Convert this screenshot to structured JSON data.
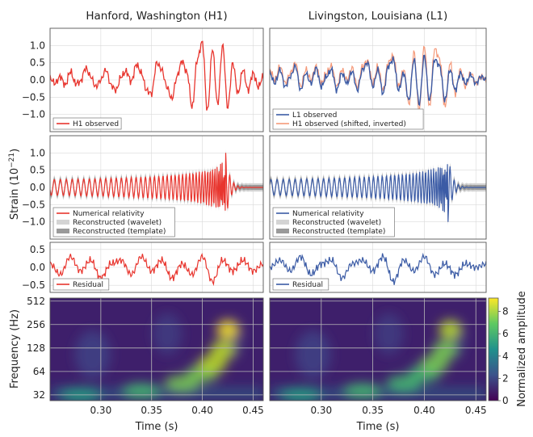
{
  "chart_data": {
    "type": "line",
    "columns": [
      {
        "title": "Hanford, Washington (H1)",
        "color": "#e8352e"
      },
      {
        "title": "Livingston, Louisiana (L1)",
        "color": "#3b5ba5"
      }
    ],
    "shared": {
      "xlabel": "Time (s)",
      "xlim": [
        0.25,
        0.46
      ],
      "xticks": [
        "0.30",
        "0.35",
        "0.40",
        "0.45"
      ],
      "xtick_values": [
        0.3,
        0.35,
        0.4,
        0.45
      ],
      "ylabel_strain": "Strain (10",
      "ylabel_strain_exp": "−21",
      "ylabel_strain_close": ")",
      "ylabel_freq": "Frequency (Hz)"
    },
    "rows": [
      {
        "id": "observed",
        "ylim": [
          -1.5,
          1.5
        ],
        "yticks": [
          "1.0",
          "0.5",
          "0.0",
          "−0.5",
          "−1.0"
        ],
        "ytick_values": [
          1.0,
          0.5,
          0.0,
          -0.5,
          -1.0
        ],
        "legend": {
          "h1": [
            {
              "label": "H1 observed",
              "color": "#e8352e",
              "style": "line"
            }
          ],
          "l1": [
            {
              "label": "L1 observed",
              "color": "#3b5ba5",
              "style": "line"
            },
            {
              "label": "H1 observed (shifted, inverted)",
              "color": "#f59a7a",
              "style": "line"
            }
          ]
        }
      },
      {
        "id": "reconstructed",
        "ylim": [
          -1.5,
          1.5
        ],
        "yticks": [
          "1.0",
          "0.5",
          "0.0",
          "−0.5",
          "−1.0"
        ],
        "ytick_values": [
          1.0,
          0.5,
          0.0,
          -0.5,
          -1.0
        ],
        "legend": {
          "h1": [
            {
              "label": "Numerical relativity",
              "color": "#e8352e",
              "style": "line"
            },
            {
              "label": "Reconstructed (wavelet)",
              "color": "#d4d4d4",
              "style": "band"
            },
            {
              "label": "Reconstructed (template)",
              "color": "#9a9a9a",
              "style": "band"
            }
          ],
          "l1": [
            {
              "label": "Numerical relativity",
              "color": "#3b5ba5",
              "style": "line"
            },
            {
              "label": "Reconstructed (wavelet)",
              "color": "#d4d4d4",
              "style": "band"
            },
            {
              "label": "Reconstructed (template)",
              "color": "#9a9a9a",
              "style": "band"
            }
          ]
        }
      },
      {
        "id": "residual",
        "ylim": [
          -0.7,
          0.7
        ],
        "yticks": [
          "0.5",
          "0.0",
          "−0.5"
        ],
        "ytick_values": [
          0.5,
          0.0,
          -0.5
        ],
        "legend": {
          "h1": [
            {
              "label": "Residual",
              "color": "#e8352e",
              "style": "line"
            }
          ],
          "l1": [
            {
              "label": "Residual",
              "color": "#3b5ba5",
              "style": "line"
            }
          ]
        }
      },
      {
        "id": "spectrogram",
        "scale": "log2",
        "ylim": [
          27,
          560
        ],
        "yticks": [
          "512",
          "256",
          "128",
          "64",
          "32"
        ],
        "ytick_values": [
          512,
          256,
          128,
          64,
          32
        ]
      }
    ],
    "colorbar": {
      "label": "Normalized amplitude",
      "ticks": [
        "0",
        "2",
        "4",
        "6",
        "8"
      ],
      "tick_values": [
        0,
        2,
        4,
        6,
        8
      ],
      "range": [
        0,
        9.2
      ],
      "colormap": "viridis"
    },
    "series": {
      "h1_observed": {
        "x": [
          0.25,
          0.255,
          0.26,
          0.265,
          0.27,
          0.275,
          0.28,
          0.285,
          0.29,
          0.295,
          0.3,
          0.305,
          0.31,
          0.315,
          0.32,
          0.325,
          0.33,
          0.335,
          0.34,
          0.345,
          0.35,
          0.355,
          0.36,
          0.365,
          0.37,
          0.375,
          0.38,
          0.385,
          0.39,
          0.395,
          0.4,
          0.405,
          0.41,
          0.415,
          0.42,
          0.425,
          0.43,
          0.435,
          0.44,
          0.445,
          0.45,
          0.455,
          0.46
        ],
        "y": [
          0.05,
          -0.1,
          0.1,
          -0.15,
          0.25,
          -0.1,
          -0.05,
          0.35,
          0.1,
          -0.2,
          0.0,
          0.3,
          -0.15,
          -0.3,
          0.1,
          0.25,
          -0.05,
          0.45,
          0.2,
          -0.3,
          -0.4,
          0.5,
          0.3,
          -0.2,
          -0.55,
          0.1,
          0.55,
          0.2,
          -0.8,
          0.6,
          1.1,
          -0.9,
          0.9,
          -0.7,
          1.0,
          -0.8,
          0.5,
          -0.4,
          0.3,
          -0.3,
          0.2,
          -0.2,
          0.1
        ]
      },
      "l1_observed": {
        "x": [
          0.25,
          0.255,
          0.26,
          0.265,
          0.27,
          0.275,
          0.28,
          0.285,
          0.29,
          0.295,
          0.3,
          0.305,
          0.31,
          0.315,
          0.32,
          0.325,
          0.33,
          0.335,
          0.34,
          0.345,
          0.35,
          0.355,
          0.36,
          0.365,
          0.37,
          0.375,
          0.38,
          0.385,
          0.39,
          0.395,
          0.4,
          0.405,
          0.41,
          0.415,
          0.42,
          0.425,
          0.43,
          0.435,
          0.44,
          0.445,
          0.45,
          0.455,
          0.46
        ],
        "y": [
          0.2,
          -0.1,
          0.3,
          -0.2,
          0.1,
          0.4,
          -0.3,
          0.2,
          -0.1,
          0.35,
          -0.2,
          0.1,
          0.3,
          -0.3,
          0.2,
          -0.1,
          0.25,
          -0.3,
          0.3,
          0.5,
          -0.2,
          0.3,
          -0.4,
          0.4,
          0.6,
          -0.3,
          0.2,
          -0.6,
          0.6,
          -0.7,
          0.7,
          -0.6,
          0.6,
          0.4,
          -0.6,
          0.3,
          -0.3,
          0.2,
          -0.1,
          0.15,
          -0.1,
          0.1,
          0.0
        ]
      },
      "h1_shifted_inverted": {
        "x": [
          0.25,
          0.255,
          0.26,
          0.265,
          0.27,
          0.275,
          0.28,
          0.285,
          0.29,
          0.295,
          0.3,
          0.305,
          0.31,
          0.315,
          0.32,
          0.325,
          0.33,
          0.335,
          0.34,
          0.345,
          0.35,
          0.355,
          0.36,
          0.365,
          0.37,
          0.375,
          0.38,
          0.385,
          0.39,
          0.395,
          0.4,
          0.405,
          0.41,
          0.415,
          0.42,
          0.425,
          0.43,
          0.435,
          0.44,
          0.445,
          0.45,
          0.455,
          0.46
        ],
        "y": [
          0.3,
          0.0,
          0.4,
          -0.1,
          0.2,
          0.5,
          -0.2,
          0.3,
          0.0,
          0.4,
          -0.1,
          0.2,
          0.4,
          -0.2,
          0.3,
          0.0,
          0.35,
          -0.2,
          0.4,
          0.55,
          -0.1,
          0.4,
          -0.3,
          0.5,
          0.7,
          -0.2,
          0.3,
          -0.7,
          0.8,
          -0.9,
          1.0,
          -0.8,
          0.9,
          0.6,
          -0.8,
          0.5,
          -0.4,
          0.3,
          -0.2,
          0.2,
          -0.1,
          0.1,
          0.0
        ]
      },
      "h1_numerical_relativity": {
        "x": [
          0.25,
          0.26,
          0.27,
          0.28,
          0.29,
          0.3,
          0.31,
          0.32,
          0.33,
          0.34,
          0.35,
          0.36,
          0.37,
          0.38,
          0.385,
          0.39,
          0.395,
          0.4,
          0.405,
          0.41,
          0.415,
          0.42,
          0.425,
          0.43,
          0.44,
          0.45,
          0.46
        ],
        "y": [
          0.0,
          0.05,
          -0.05,
          0.1,
          -0.1,
          0.12,
          -0.15,
          0.2,
          -0.2,
          0.3,
          -0.3,
          0.4,
          -0.45,
          0.55,
          -0.65,
          0.7,
          -0.85,
          0.9,
          -1.0,
          1.0,
          -0.9,
          0.7,
          -0.4,
          0.2,
          -0.1,
          0.05,
          0.0
        ]
      },
      "l1_numerical_relativity": {
        "x": [
          0.25,
          0.26,
          0.27,
          0.28,
          0.29,
          0.3,
          0.31,
          0.32,
          0.33,
          0.34,
          0.35,
          0.36,
          0.37,
          0.38,
          0.385,
          0.39,
          0.395,
          0.4,
          0.405,
          0.41,
          0.415,
          0.42,
          0.425,
          0.43,
          0.44,
          0.45,
          0.46
        ],
        "y": [
          0.0,
          -0.05,
          0.05,
          -0.1,
          0.1,
          -0.12,
          0.15,
          -0.2,
          0.2,
          -0.3,
          0.3,
          -0.4,
          0.45,
          -0.55,
          0.65,
          -0.7,
          0.85,
          -0.9,
          1.0,
          -1.0,
          0.9,
          -0.7,
          0.4,
          -0.2,
          0.1,
          -0.05,
          0.0
        ]
      },
      "h1_residual": {
        "x": [
          0.25,
          0.26,
          0.27,
          0.28,
          0.29,
          0.3,
          0.31,
          0.32,
          0.33,
          0.34,
          0.35,
          0.36,
          0.37,
          0.38,
          0.39,
          0.4,
          0.41,
          0.42,
          0.43,
          0.44,
          0.45,
          0.46
        ],
        "y": [
          0.1,
          -0.2,
          0.3,
          -0.1,
          0.2,
          -0.3,
          0.1,
          0.2,
          -0.2,
          0.3,
          -0.1,
          0.2,
          -0.3,
          0.1,
          -0.2,
          0.3,
          -0.4,
          0.2,
          -0.1,
          0.2,
          -0.1,
          0.1
        ]
      },
      "l1_residual": {
        "x": [
          0.25,
          0.26,
          0.27,
          0.28,
          0.29,
          0.3,
          0.31,
          0.32,
          0.33,
          0.34,
          0.35,
          0.36,
          0.37,
          0.38,
          0.39,
          0.4,
          0.41,
          0.42,
          0.43,
          0.44,
          0.45,
          0.46
        ],
        "y": [
          0.0,
          0.2,
          -0.1,
          0.3,
          -0.2,
          0.1,
          0.2,
          -0.3,
          0.1,
          0.2,
          -0.1,
          0.3,
          -0.4,
          0.2,
          -0.1,
          0.3,
          -0.2,
          0.1,
          -0.2,
          0.1,
          0.0,
          0.1
        ]
      }
    },
    "spectrogram_chirp": {
      "time": [
        0.28,
        0.34,
        0.38,
        0.4,
        0.41,
        0.42,
        0.425
      ],
      "frequency": [
        32,
        36,
        45,
        60,
        80,
        120,
        220
      ],
      "h1_peak": 9.0,
      "l1_peak": 7.0
    }
  }
}
